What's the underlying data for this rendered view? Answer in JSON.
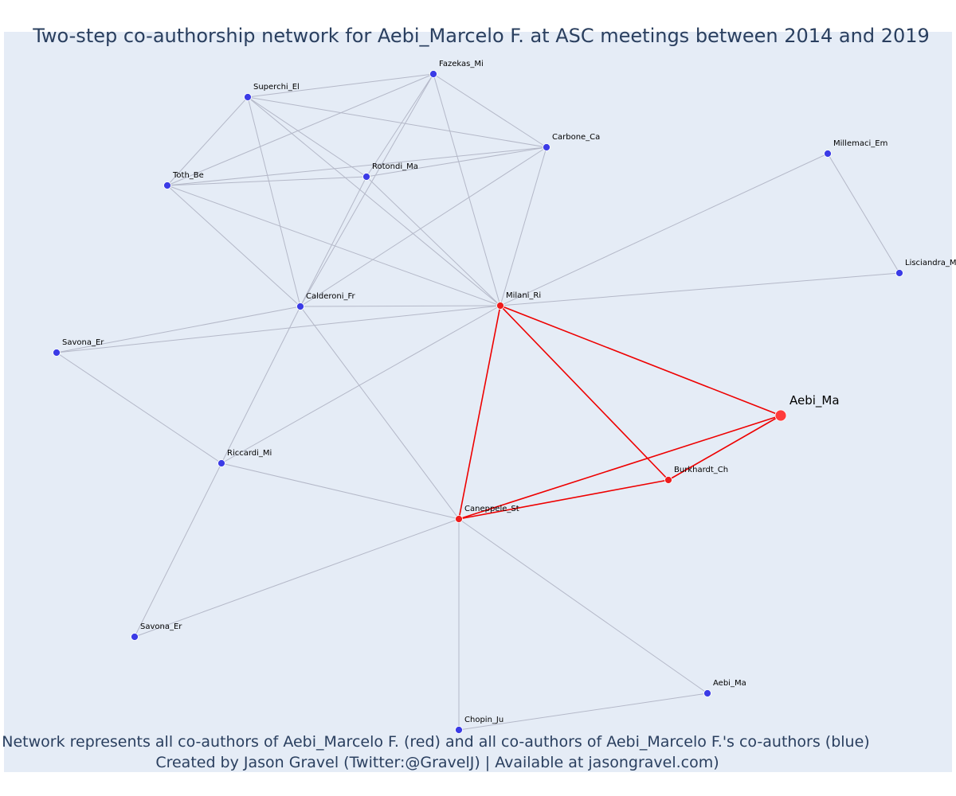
{
  "title": "Two-step co-authorship network for Aebi_Marcelo F. at ASC meetings between 2014 and 2019",
  "caption": {
    "line1": "Network represents all co-authors of Aebi_Marcelo F. (red) and all co-authors of Aebi_Marcelo F.'s co-authors (blue)",
    "line2": "Created by Jason Gravel (Twitter:@GravelJ) | Available at jasongravel.com)"
  },
  "colors": {
    "background": "#e5ecf6",
    "title": "#2a3f5f",
    "focal": "#ff3b3b",
    "coauthor": "#ee1c1c",
    "second_step": "#3b3be6",
    "edge": "#b4b8c8",
    "focal_edge": "#ee0000"
  },
  "chart_data": {
    "type": "network",
    "nodes": [
      {
        "id": "fazekas",
        "label": "Fazekas_Mi",
        "group": "second_step"
      },
      {
        "id": "superchi",
        "label": "Superchi_El",
        "group": "second_step"
      },
      {
        "id": "carbone",
        "label": "Carbone_Ca",
        "group": "second_step"
      },
      {
        "id": "rotondi",
        "label": "Rotondi_Ma",
        "group": "second_step"
      },
      {
        "id": "toth",
        "label": "Toth_Be",
        "group": "second_step"
      },
      {
        "id": "millemaci",
        "label": "Millemaci_Em",
        "group": "second_step"
      },
      {
        "id": "lisciandra",
        "label": "Lisciandra_M",
        "group": "second_step"
      },
      {
        "id": "calderoni",
        "label": "Calderoni_Fr",
        "group": "second_step"
      },
      {
        "id": "milani",
        "label": "Milani_Ri",
        "group": "coauthor"
      },
      {
        "id": "savona1",
        "label": "Savona_Er",
        "group": "second_step"
      },
      {
        "id": "aebi_focal",
        "label": "Aebi_Ma",
        "group": "focal"
      },
      {
        "id": "burkhardt",
        "label": "Burkhardt_Ch",
        "group": "coauthor"
      },
      {
        "id": "riccardi",
        "label": "Riccardi_Mi",
        "group": "second_step"
      },
      {
        "id": "caneppele",
        "label": "Caneppele_St",
        "group": "coauthor"
      },
      {
        "id": "savona2",
        "label": "Savona_Er",
        "group": "second_step"
      },
      {
        "id": "aebi2",
        "label": "Aebi_Ma",
        "group": "second_step"
      },
      {
        "id": "chopin",
        "label": "Chopin_Ju",
        "group": "second_step"
      }
    ],
    "edges": [
      [
        "aebi_focal",
        "milani",
        "focal"
      ],
      [
        "aebi_focal",
        "burkhardt",
        "focal"
      ],
      [
        "aebi_focal",
        "caneppele",
        "focal"
      ],
      [
        "milani",
        "burkhardt",
        "focal"
      ],
      [
        "milani",
        "caneppele",
        "focal"
      ],
      [
        "burkhardt",
        "caneppele",
        "focal"
      ],
      [
        "fazekas",
        "superchi",
        "other"
      ],
      [
        "fazekas",
        "carbone",
        "other"
      ],
      [
        "fazekas",
        "toth",
        "other"
      ],
      [
        "fazekas",
        "calderoni",
        "other"
      ],
      [
        "fazekas",
        "milani",
        "other"
      ],
      [
        "fazekas",
        "rotondi",
        "other"
      ],
      [
        "superchi",
        "toth",
        "other"
      ],
      [
        "superchi",
        "carbone",
        "other"
      ],
      [
        "superchi",
        "rotondi",
        "other"
      ],
      [
        "superchi",
        "calderoni",
        "other"
      ],
      [
        "superchi",
        "milani",
        "other"
      ],
      [
        "toth",
        "carbone",
        "other"
      ],
      [
        "toth",
        "rotondi",
        "other"
      ],
      [
        "toth",
        "calderoni",
        "other"
      ],
      [
        "toth",
        "milani",
        "other"
      ],
      [
        "rotondi",
        "carbone",
        "other"
      ],
      [
        "rotondi",
        "calderoni",
        "other"
      ],
      [
        "rotondi",
        "milani",
        "other"
      ],
      [
        "carbone",
        "calderoni",
        "other"
      ],
      [
        "carbone",
        "milani",
        "other"
      ],
      [
        "millemaci",
        "milani",
        "other"
      ],
      [
        "millemaci",
        "lisciandra",
        "other"
      ],
      [
        "lisciandra",
        "milani",
        "other"
      ],
      [
        "calderoni",
        "milani",
        "other"
      ],
      [
        "calderoni",
        "savona1",
        "other"
      ],
      [
        "calderoni",
        "riccardi",
        "other"
      ],
      [
        "calderoni",
        "caneppele",
        "other"
      ],
      [
        "savona1",
        "milani",
        "other"
      ],
      [
        "savona1",
        "riccardi",
        "other"
      ],
      [
        "riccardi",
        "milani",
        "other"
      ],
      [
        "riccardi",
        "caneppele",
        "other"
      ],
      [
        "riccardi",
        "savona2",
        "other"
      ],
      [
        "savona2",
        "caneppele",
        "other"
      ],
      [
        "caneppele",
        "chopin",
        "other"
      ],
      [
        "caneppele",
        "aebi2",
        "other"
      ],
      [
        "chopin",
        "aebi2",
        "other"
      ]
    ]
  }
}
